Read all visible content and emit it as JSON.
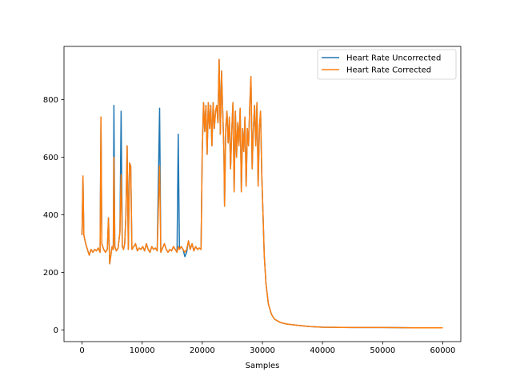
{
  "chart_data": {
    "type": "line",
    "title": "",
    "xlabel": "Samples",
    "ylabel": "",
    "xlim": [
      -3000,
      63000
    ],
    "ylim": [
      -40,
      985
    ],
    "x_ticks": [
      0,
      10000,
      20000,
      30000,
      40000,
      50000,
      60000
    ],
    "x_tick_labels": [
      "0",
      "10000",
      "20000",
      "30000",
      "40000",
      "50000",
      "60000"
    ],
    "y_ticks": [
      0,
      200,
      400,
      600,
      800
    ],
    "y_tick_labels": [
      "0",
      "200",
      "400",
      "600",
      "800"
    ],
    "grid": false,
    "legend_position": "upper right",
    "series": [
      {
        "name": "Heart Rate Uncorrected",
        "color": "#1f77b4",
        "points": [
          [
            0,
            330
          ],
          [
            150,
            535
          ],
          [
            300,
            330
          ],
          [
            600,
            300
          ],
          [
            900,
            280
          ],
          [
            1200,
            260
          ],
          [
            1500,
            280
          ],
          [
            1800,
            270
          ],
          [
            2100,
            280
          ],
          [
            2400,
            275
          ],
          [
            2700,
            285
          ],
          [
            3000,
            270
          ],
          [
            3150,
            740
          ],
          [
            3300,
            300
          ],
          [
            3600,
            280
          ],
          [
            3900,
            270
          ],
          [
            4200,
            280
          ],
          [
            4400,
            390
          ],
          [
            4600,
            230
          ],
          [
            4800,
            260
          ],
          [
            5000,
            290
          ],
          [
            5200,
            280
          ],
          [
            5300,
            780
          ],
          [
            5450,
            290
          ],
          [
            5700,
            275
          ],
          [
            6000,
            285
          ],
          [
            6300,
            340
          ],
          [
            6500,
            760
          ],
          [
            6700,
            290
          ],
          [
            6900,
            280
          ],
          [
            7100,
            300
          ],
          [
            7300,
            400
          ],
          [
            7500,
            640
          ],
          [
            7700,
            280
          ],
          [
            7900,
            580
          ],
          [
            8100,
            570
          ],
          [
            8300,
            280
          ],
          [
            8600,
            290
          ],
          [
            8900,
            300
          ],
          [
            9200,
            275
          ],
          [
            9500,
            285
          ],
          [
            9800,
            280
          ],
          [
            10100,
            290
          ],
          [
            10400,
            275
          ],
          [
            10700,
            300
          ],
          [
            11000,
            280
          ],
          [
            11300,
            270
          ],
          [
            11600,
            290
          ],
          [
            11900,
            280
          ],
          [
            12200,
            285
          ],
          [
            12500,
            275
          ],
          [
            12900,
            770
          ],
          [
            13100,
            270
          ],
          [
            13400,
            285
          ],
          [
            13700,
            300
          ],
          [
            14000,
            280
          ],
          [
            14300,
            270
          ],
          [
            14600,
            280
          ],
          [
            14900,
            275
          ],
          [
            15200,
            290
          ],
          [
            15500,
            280
          ],
          [
            15800,
            270
          ],
          [
            16000,
            680
          ],
          [
            16200,
            280
          ],
          [
            16500,
            290
          ],
          [
            16800,
            280
          ],
          [
            17100,
            255
          ],
          [
            17400,
            270
          ],
          [
            17700,
            310
          ],
          [
            18000,
            280
          ],
          [
            18300,
            300
          ],
          [
            18600,
            275
          ],
          [
            18900,
            290
          ],
          [
            19200,
            280
          ],
          [
            19500,
            285
          ],
          [
            19800,
            280
          ],
          [
            20000,
            620
          ],
          [
            20200,
            790
          ],
          [
            20400,
            690
          ],
          [
            20600,
            780
          ],
          [
            20800,
            610
          ],
          [
            21000,
            790
          ],
          [
            21200,
            700
          ],
          [
            21400,
            780
          ],
          [
            21600,
            640
          ],
          [
            21800,
            790
          ],
          [
            22000,
            700
          ],
          [
            22200,
            760
          ],
          [
            22400,
            780
          ],
          [
            22600,
            720
          ],
          [
            22800,
            940
          ],
          [
            23000,
            680
          ],
          [
            23200,
            900
          ],
          [
            23400,
            760
          ],
          [
            23600,
            620
          ],
          [
            23700,
            430
          ],
          [
            23900,
            700
          ],
          [
            24100,
            760
          ],
          [
            24300,
            650
          ],
          [
            24500,
            740
          ],
          [
            24700,
            560
          ],
          [
            24900,
            690
          ],
          [
            25100,
            790
          ],
          [
            25300,
            480
          ],
          [
            25500,
            760
          ],
          [
            25700,
            600
          ],
          [
            25900,
            720
          ],
          [
            26100,
            640
          ],
          [
            26300,
            770
          ],
          [
            26500,
            480
          ],
          [
            26700,
            700
          ],
          [
            26900,
            620
          ],
          [
            27100,
            740
          ],
          [
            27300,
            500
          ],
          [
            27500,
            700
          ],
          [
            27700,
            640
          ],
          [
            27900,
            780
          ],
          [
            28100,
            880
          ],
          [
            28300,
            560
          ],
          [
            28500,
            700
          ],
          [
            28700,
            780
          ],
          [
            28900,
            640
          ],
          [
            29100,
            790
          ],
          [
            29300,
            500
          ],
          [
            29500,
            700
          ],
          [
            29700,
            760
          ],
          [
            29900,
            540
          ],
          [
            30100,
            400
          ],
          [
            30300,
            260
          ],
          [
            30600,
            160
          ],
          [
            31000,
            90
          ],
          [
            31500,
            55
          ],
          [
            32000,
            38
          ],
          [
            33000,
            26
          ],
          [
            34000,
            21
          ],
          [
            36000,
            16
          ],
          [
            38000,
            12
          ],
          [
            40000,
            10
          ],
          [
            45000,
            9
          ],
          [
            50000,
            9
          ],
          [
            55000,
            8
          ],
          [
            60000,
            8
          ]
        ]
      },
      {
        "name": "Heart Rate Corrected",
        "color": "#ff7f0e",
        "points": [
          [
            0,
            330
          ],
          [
            150,
            535
          ],
          [
            300,
            330
          ],
          [
            600,
            300
          ],
          [
            900,
            280
          ],
          [
            1200,
            260
          ],
          [
            1500,
            280
          ],
          [
            1800,
            270
          ],
          [
            2100,
            280
          ],
          [
            2400,
            275
          ],
          [
            2700,
            285
          ],
          [
            3000,
            270
          ],
          [
            3150,
            740
          ],
          [
            3300,
            300
          ],
          [
            3600,
            280
          ],
          [
            3900,
            270
          ],
          [
            4200,
            280
          ],
          [
            4400,
            390
          ],
          [
            4600,
            230
          ],
          [
            4800,
            260
          ],
          [
            5000,
            290
          ],
          [
            5200,
            280
          ],
          [
            5300,
            600
          ],
          [
            5450,
            290
          ],
          [
            5700,
            275
          ],
          [
            6000,
            285
          ],
          [
            6300,
            340
          ],
          [
            6500,
            540
          ],
          [
            6700,
            290
          ],
          [
            6900,
            280
          ],
          [
            7100,
            300
          ],
          [
            7300,
            400
          ],
          [
            7500,
            640
          ],
          [
            7700,
            280
          ],
          [
            7900,
            580
          ],
          [
            8100,
            570
          ],
          [
            8300,
            280
          ],
          [
            8600,
            290
          ],
          [
            8900,
            300
          ],
          [
            9200,
            275
          ],
          [
            9500,
            285
          ],
          [
            9800,
            280
          ],
          [
            10100,
            290
          ],
          [
            10400,
            275
          ],
          [
            10700,
            300
          ],
          [
            11000,
            280
          ],
          [
            11300,
            270
          ],
          [
            11600,
            290
          ],
          [
            11900,
            280
          ],
          [
            12200,
            285
          ],
          [
            12500,
            275
          ],
          [
            12900,
            570
          ],
          [
            13100,
            270
          ],
          [
            13400,
            285
          ],
          [
            13700,
            300
          ],
          [
            14000,
            280
          ],
          [
            14300,
            270
          ],
          [
            14600,
            280
          ],
          [
            14900,
            275
          ],
          [
            15200,
            290
          ],
          [
            15500,
            280
          ],
          [
            15800,
            270
          ],
          [
            16000,
            290
          ],
          [
            16200,
            280
          ],
          [
            16500,
            290
          ],
          [
            16800,
            280
          ],
          [
            17100,
            270
          ],
          [
            17400,
            280
          ],
          [
            17700,
            310
          ],
          [
            18000,
            280
          ],
          [
            18300,
            300
          ],
          [
            18600,
            275
          ],
          [
            18900,
            290
          ],
          [
            19200,
            280
          ],
          [
            19500,
            285
          ],
          [
            19800,
            280
          ],
          [
            20000,
            620
          ],
          [
            20200,
            790
          ],
          [
            20400,
            690
          ],
          [
            20600,
            780
          ],
          [
            20800,
            610
          ],
          [
            21000,
            790
          ],
          [
            21200,
            700
          ],
          [
            21400,
            780
          ],
          [
            21600,
            640
          ],
          [
            21800,
            790
          ],
          [
            22000,
            700
          ],
          [
            22200,
            760
          ],
          [
            22400,
            780
          ],
          [
            22600,
            720
          ],
          [
            22800,
            940
          ],
          [
            23000,
            680
          ],
          [
            23200,
            900
          ],
          [
            23400,
            760
          ],
          [
            23600,
            620
          ],
          [
            23700,
            430
          ],
          [
            23900,
            700
          ],
          [
            24100,
            760
          ],
          [
            24300,
            650
          ],
          [
            24500,
            740
          ],
          [
            24700,
            560
          ],
          [
            24900,
            690
          ],
          [
            25100,
            790
          ],
          [
            25300,
            480
          ],
          [
            25500,
            760
          ],
          [
            25700,
            600
          ],
          [
            25900,
            720
          ],
          [
            26100,
            640
          ],
          [
            26300,
            770
          ],
          [
            26500,
            480
          ],
          [
            26700,
            700
          ],
          [
            26900,
            620
          ],
          [
            27100,
            740
          ],
          [
            27300,
            500
          ],
          [
            27500,
            700
          ],
          [
            27700,
            640
          ],
          [
            27900,
            780
          ],
          [
            28100,
            880
          ],
          [
            28300,
            560
          ],
          [
            28500,
            700
          ],
          [
            28700,
            780
          ],
          [
            28900,
            640
          ],
          [
            29100,
            790
          ],
          [
            29300,
            500
          ],
          [
            29500,
            700
          ],
          [
            29700,
            760
          ],
          [
            29900,
            540
          ],
          [
            30100,
            400
          ],
          [
            30300,
            260
          ],
          [
            30600,
            160
          ],
          [
            31000,
            90
          ],
          [
            31500,
            55
          ],
          [
            32000,
            38
          ],
          [
            33000,
            26
          ],
          [
            34000,
            21
          ],
          [
            36000,
            16
          ],
          [
            38000,
            12
          ],
          [
            40000,
            10
          ],
          [
            45000,
            9
          ],
          [
            50000,
            9
          ],
          [
            55000,
            8
          ],
          [
            60000,
            8
          ]
        ]
      }
    ]
  }
}
